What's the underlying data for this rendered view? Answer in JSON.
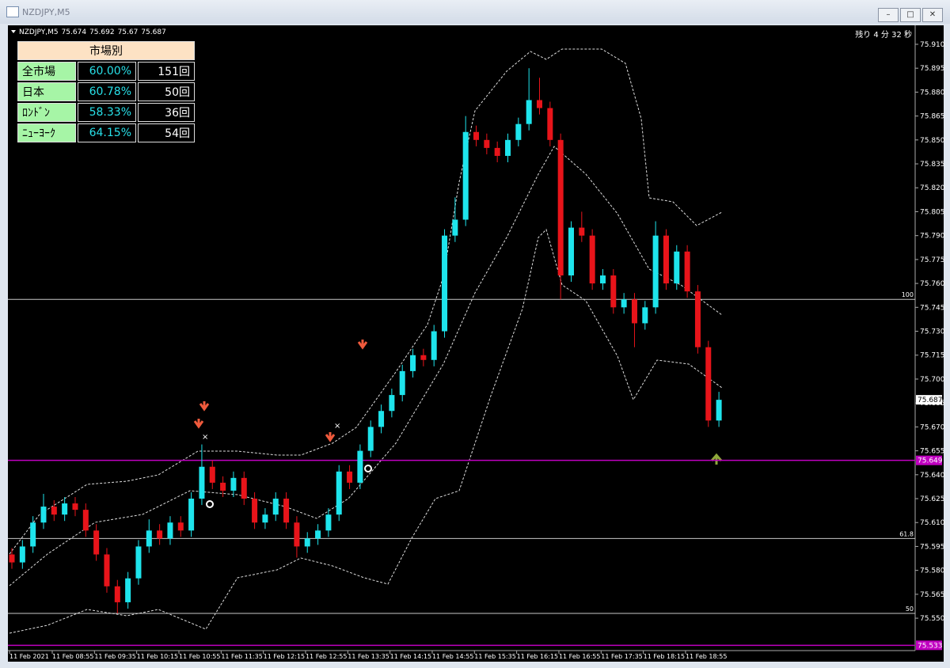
{
  "window": {
    "title": "NZDJPY,M5"
  },
  "chart": {
    "symbol": "NZDJPY,M5",
    "ohlc": [
      75.674,
      75.692,
      75.67,
      75.687
    ],
    "timer": "残り 4 分 32 秒",
    "ylim": [
      75.5277,
      75.9219
    ],
    "yticks": [
      {
        "value": 75.91,
        "label": "75.910"
      },
      {
        "value": 75.895,
        "label": "75.895"
      },
      {
        "value": 75.88,
        "label": "75.880"
      },
      {
        "value": 75.865,
        "label": "75.865"
      },
      {
        "value": 75.85,
        "label": "75.850"
      },
      {
        "value": 75.835,
        "label": "75.835"
      },
      {
        "value": 75.82,
        "label": "75.820"
      },
      {
        "value": 75.805,
        "label": "75.805"
      },
      {
        "value": 75.79,
        "label": "75.790"
      },
      {
        "value": 75.775,
        "label": "75.775"
      },
      {
        "value": 75.76,
        "label": "75.760"
      },
      {
        "value": 75.745,
        "label": "75.745"
      },
      {
        "value": 75.73,
        "label": "75.730"
      },
      {
        "value": 75.715,
        "label": "75.715"
      },
      {
        "value": 75.7,
        "label": "75.700"
      },
      {
        "value": 75.685,
        "label": "75.685"
      },
      {
        "value": 75.67,
        "label": "75.670"
      },
      {
        "value": 75.655,
        "label": "75.655"
      },
      {
        "value": 75.64,
        "label": "75.640"
      },
      {
        "value": 75.625,
        "label": "75.625"
      },
      {
        "value": 75.61,
        "label": "75.610"
      },
      {
        "value": 75.595,
        "label": "75.595"
      },
      {
        "value": 75.58,
        "label": "75.580"
      },
      {
        "value": 75.565,
        "label": "75.565"
      },
      {
        "value": 75.55,
        "label": "75.550"
      }
    ],
    "xticks": [
      "11 Feb 2021",
      "11 Feb 08:55",
      "11 Feb 09:35",
      "11 Feb 10:15",
      "11 Feb 10:55",
      "11 Feb 11:35",
      "11 Feb 12:15",
      "11 Feb 12:55",
      "11 Feb 13:35",
      "11 Feb 14:15",
      "11 Feb 14:55",
      "11 Feb 15:35",
      "11 Feb 16:15",
      "11 Feb 16:55",
      "11 Feb 17:35",
      "11 Feb 18:15",
      "11 Feb 18:55"
    ],
    "levels": [
      {
        "value": 75.75,
        "label": "100",
        "color": "#c8c8c8"
      },
      {
        "value": 75.6,
        "label": "61.8",
        "color": "#c8c8c8"
      },
      {
        "value": 75.553,
        "label": "50",
        "color": "#c8c8c8"
      },
      {
        "value": 75.649,
        "label": "75.649",
        "color": "#c000c0"
      },
      {
        "value": 75.533,
        "label": "75.533",
        "color": "#c000c0"
      }
    ],
    "current_price": {
      "value": 75.687,
      "label": "75.687"
    },
    "colors": {
      "up": "#1ee4ec",
      "down": "#e8141a"
    },
    "candles": [
      [
        75.59,
        75.594,
        75.581,
        75.585
      ],
      [
        75.585,
        75.599,
        75.581,
        75.595
      ],
      [
        75.595,
        75.614,
        75.591,
        75.61
      ],
      [
        75.61,
        75.628,
        75.606,
        75.62
      ],
      [
        75.62,
        75.624,
        75.611,
        75.615
      ],
      [
        75.615,
        75.626,
        75.611,
        75.622
      ],
      [
        75.622,
        75.626,
        75.614,
        75.618
      ],
      [
        75.618,
        75.622,
        75.601,
        75.605
      ],
      [
        75.605,
        75.609,
        75.586,
        75.59
      ],
      [
        75.59,
        75.594,
        75.566,
        75.57
      ],
      [
        75.57,
        75.574,
        75.553,
        75.56
      ],
      [
        75.56,
        75.579,
        75.556,
        75.575
      ],
      [
        75.575,
        75.599,
        75.571,
        75.595
      ],
      [
        75.595,
        75.612,
        75.591,
        75.605
      ],
      [
        75.605,
        75.609,
        75.596,
        75.6
      ],
      [
        75.6,
        75.614,
        75.596,
        75.61
      ],
      [
        75.61,
        75.614,
        75.601,
        75.605
      ],
      [
        75.605,
        75.629,
        75.601,
        75.625
      ],
      [
        75.625,
        75.659,
        75.621,
        75.645
      ],
      [
        75.645,
        75.649,
        75.631,
        75.635
      ],
      [
        75.635,
        75.639,
        75.626,
        75.63
      ],
      [
        75.63,
        75.642,
        75.626,
        75.638
      ],
      [
        75.638,
        75.642,
        75.621,
        75.625
      ],
      [
        75.625,
        75.629,
        75.606,
        75.61
      ],
      [
        75.61,
        75.619,
        75.606,
        75.615
      ],
      [
        75.615,
        75.629,
        75.611,
        75.625
      ],
      [
        75.625,
        75.629,
        75.606,
        75.61
      ],
      [
        75.61,
        75.614,
        75.588,
        75.595
      ],
      [
        75.595,
        75.604,
        75.591,
        75.6
      ],
      [
        75.6,
        75.609,
        75.596,
        75.605
      ],
      [
        75.605,
        75.619,
        75.601,
        75.615
      ],
      [
        75.615,
        75.646,
        75.611,
        75.642
      ],
      [
        75.642,
        75.646,
        75.631,
        75.635
      ],
      [
        75.635,
        75.659,
        75.631,
        75.655
      ],
      [
        75.655,
        75.674,
        75.651,
        75.67
      ],
      [
        75.67,
        75.684,
        75.666,
        75.68
      ],
      [
        75.68,
        75.694,
        75.676,
        75.69
      ],
      [
        75.69,
        75.709,
        75.686,
        75.705
      ],
      [
        75.705,
        75.719,
        75.701,
        75.715
      ],
      [
        75.715,
        75.719,
        75.708,
        75.712
      ],
      [
        75.712,
        75.734,
        75.708,
        75.73
      ],
      [
        75.73,
        75.794,
        75.726,
        75.79
      ],
      [
        75.79,
        75.814,
        75.786,
        75.8
      ],
      [
        75.8,
        75.865,
        75.796,
        75.855
      ],
      [
        75.855,
        75.859,
        75.846,
        75.85
      ],
      [
        75.85,
        75.854,
        75.841,
        75.845
      ],
      [
        75.845,
        75.849,
        75.836,
        75.84
      ],
      [
        75.84,
        75.854,
        75.836,
        75.85
      ],
      [
        75.85,
        75.864,
        75.846,
        75.86
      ],
      [
        75.86,
        75.895,
        75.856,
        75.875
      ],
      [
        75.875,
        75.889,
        75.866,
        75.87
      ],
      [
        75.87,
        75.874,
        75.846,
        75.85
      ],
      [
        75.85,
        75.854,
        75.75,
        75.765
      ],
      [
        75.765,
        75.799,
        75.761,
        75.795
      ],
      [
        75.795,
        75.805,
        75.786,
        75.79
      ],
      [
        75.79,
        75.794,
        75.756,
        75.76
      ],
      [
        75.76,
        75.769,
        75.756,
        75.765
      ],
      [
        75.765,
        75.769,
        75.741,
        75.745
      ],
      [
        75.745,
        75.754,
        75.741,
        75.75
      ],
      [
        75.75,
        75.754,
        75.72,
        75.735
      ],
      [
        75.735,
        75.749,
        75.731,
        75.745
      ],
      [
        75.745,
        75.799,
        75.741,
        75.79
      ],
      [
        75.79,
        75.794,
        75.756,
        75.76
      ],
      [
        75.76,
        75.784,
        75.756,
        75.78
      ],
      [
        75.78,
        75.784,
        75.751,
        75.755
      ],
      [
        75.755,
        75.759,
        75.716,
        75.72
      ],
      [
        75.72,
        75.724,
        75.67,
        75.674
      ],
      [
        75.674,
        75.692,
        75.67,
        75.687
      ]
    ]
  },
  "stats_table": {
    "header": "市場別",
    "rows": [
      [
        "全市場",
        "60.00%",
        "151回"
      ],
      [
        "日本",
        "60.78%",
        "50回"
      ],
      [
        "ﾛﾝﾄﾞﾝ",
        "58.33%",
        "36回"
      ],
      [
        "ﾆｭｰﾖｰｸ",
        "64.15%",
        "54回"
      ]
    ]
  }
}
